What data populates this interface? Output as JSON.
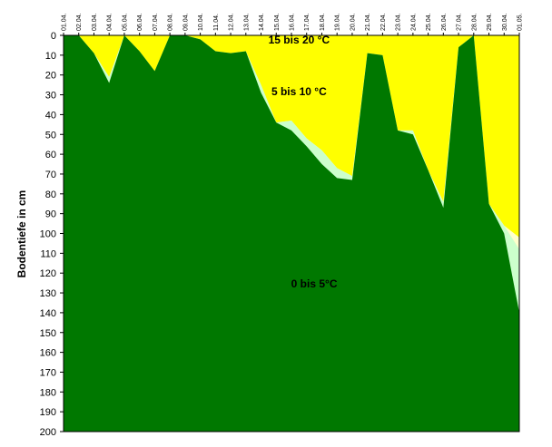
{
  "chart_data": {
    "type": "area",
    "ylabel": "Bodentiefe in cm",
    "ylim": [
      0,
      200
    ],
    "y_inverted": true,
    "y_ticks": [
      0,
      10,
      20,
      30,
      40,
      50,
      60,
      70,
      80,
      90,
      100,
      110,
      120,
      130,
      140,
      150,
      160,
      170,
      180,
      190,
      200
    ],
    "categories": [
      "01.04.",
      "02.04.",
      "03.04.",
      "04.04.",
      "05.04.",
      "06.04.",
      "07.04.",
      "08.04.",
      "09.04.",
      "10.04.",
      "11.04.",
      "12.04.",
      "13.04.",
      "14.04.",
      "15.04.",
      "16.04.",
      "17.04.",
      "18.04.",
      "19.04.",
      "20.04.",
      "21.04.",
      "22.04.",
      "23.04.",
      "24.04.",
      "25.04.",
      "26.04.",
      "27.04.",
      "28.04.",
      "29.04.",
      "30.04.",
      "01.05."
    ],
    "series": [
      {
        "name": "0 bis 5°C",
        "color": "#007800",
        "values": [
          0,
          0,
          9,
          24,
          0,
          8,
          18,
          0,
          0,
          2,
          8,
          9,
          8,
          29,
          44,
          48,
          56,
          65,
          72,
          73,
          9,
          10,
          48,
          50,
          68,
          87,
          6,
          0,
          85,
          100,
          140
        ]
      },
      {
        "name": "5 bis 10 °C",
        "color": "#ccffcc",
        "values": [
          0,
          0,
          0,
          3,
          0,
          0,
          0,
          0,
          0,
          0,
          0,
          0,
          0,
          4,
          0,
          5,
          4,
          7,
          5,
          2,
          0,
          0,
          0,
          2,
          0,
          3,
          0,
          0,
          0,
          4,
          32
        ]
      },
      {
        "name": "15 bis 20 °C",
        "color": "#ffffcc",
        "values": [
          0,
          0,
          0,
          0,
          0,
          0,
          0,
          0,
          0,
          0,
          0,
          0,
          0,
          0,
          0,
          0,
          0,
          0,
          0,
          0,
          0,
          0,
          0,
          0,
          0,
          0,
          0,
          0,
          0,
          0,
          6
        ]
      },
      {
        "name": "",
        "color": "#ffff00",
        "values": [
          0,
          0,
          0,
          0,
          0,
          0,
          0,
          0,
          0,
          0,
          0,
          0,
          0,
          0,
          0,
          0,
          0,
          0,
          0,
          0,
          0,
          0,
          0,
          0,
          0,
          0,
          0,
          0,
          0,
          0,
          0
        ]
      }
    ],
    "annotations": [
      {
        "text": "15 bis 20 °C",
        "x_index": 15.5,
        "y": 1
      },
      {
        "text": "5 bis 10 °C",
        "x_index": 15.5,
        "y": 27
      },
      {
        "text": "0 bis 5°C",
        "x_index": 16.5,
        "y": 124
      }
    ],
    "grid": false
  }
}
